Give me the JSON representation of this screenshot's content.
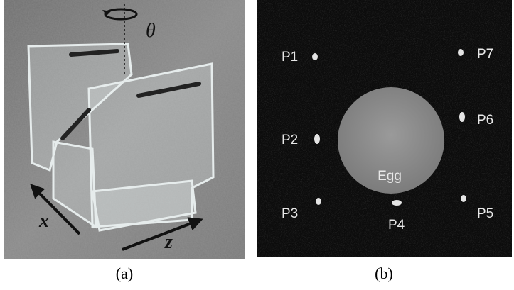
{
  "panel_a": {
    "caption": "(a)",
    "rotation_label": "θ",
    "axis_x_label": "x",
    "axis_z_label": "z"
  },
  "panel_b": {
    "caption": "(b)",
    "sample_label": "Egg",
    "points": [
      "P1",
      "P2",
      "P3",
      "P4",
      "P5",
      "P6",
      "P7"
    ]
  }
}
